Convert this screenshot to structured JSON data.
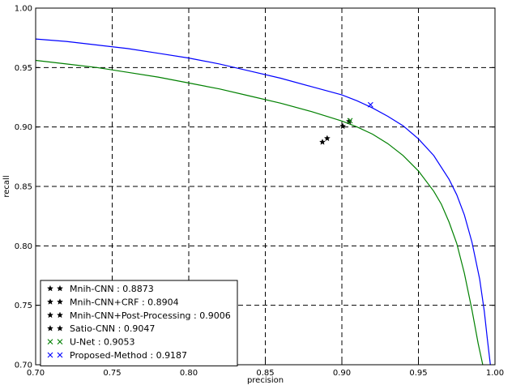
{
  "chart_data": {
    "type": "line",
    "title": "",
    "xlabel": "precision",
    "ylabel": "recall",
    "xlim": [
      0.7,
      1.0
    ],
    "ylim": [
      0.7,
      1.0
    ],
    "xticks": [
      "0.70",
      "0.75",
      "0.80",
      "0.85",
      "0.90",
      "0.95",
      "1.00"
    ],
    "yticks": [
      "0.70",
      "0.75",
      "0.80",
      "0.85",
      "0.90",
      "0.95",
      "1.00"
    ],
    "grid": true,
    "legend_position": "lower-left",
    "series": [
      {
        "name": "Proposed-Method : 0.9187",
        "color": "#0000ff",
        "kind": "line",
        "x": [
          0.7,
          0.72,
          0.74,
          0.76,
          0.78,
          0.8,
          0.82,
          0.84,
          0.86,
          0.88,
          0.9,
          0.91,
          0.92,
          0.93,
          0.94,
          0.95,
          0.96,
          0.97,
          0.975,
          0.98,
          0.985,
          0.99,
          0.993,
          0.995,
          0.997
        ],
        "y": [
          0.974,
          0.972,
          0.969,
          0.966,
          0.962,
          0.958,
          0.953,
          0.947,
          0.941,
          0.934,
          0.927,
          0.922,
          0.916,
          0.909,
          0.901,
          0.89,
          0.876,
          0.856,
          0.843,
          0.826,
          0.803,
          0.772,
          0.745,
          0.722,
          0.7
        ]
      },
      {
        "name": "U-Net : 0.9053",
        "color": "#008000",
        "kind": "line",
        "x": [
          0.7,
          0.72,
          0.74,
          0.76,
          0.78,
          0.8,
          0.82,
          0.84,
          0.86,
          0.88,
          0.9,
          0.91,
          0.92,
          0.93,
          0.94,
          0.95,
          0.96,
          0.965,
          0.97,
          0.975,
          0.98,
          0.985,
          0.989,
          0.992
        ],
        "y": [
          0.956,
          0.953,
          0.95,
          0.946,
          0.942,
          0.937,
          0.932,
          0.926,
          0.92,
          0.913,
          0.905,
          0.9,
          0.894,
          0.886,
          0.876,
          0.863,
          0.846,
          0.835,
          0.82,
          0.802,
          0.777,
          0.746,
          0.718,
          0.7
        ]
      }
    ],
    "points": [
      {
        "name": "Mnih-CNN : 0.8873",
        "color": "#000000",
        "marker": "star",
        "x": 0.8873,
        "y": 0.8873
      },
      {
        "name": "Mnih-CNN+CRF : 0.8904",
        "color": "#000000",
        "marker": "star",
        "x": 0.8904,
        "y": 0.8904
      },
      {
        "name": "Mnih-CNN+Post-Processing : 0.9006",
        "color": "#000000",
        "marker": "star",
        "x": 0.9006,
        "y": 0.9006
      },
      {
        "name": "Satio-CNN : 0.9047",
        "color": "#000000",
        "marker": "star",
        "x": 0.9047,
        "y": 0.9047
      },
      {
        "name": "U-Net : 0.9053",
        "color": "#008000",
        "marker": "x",
        "x": 0.9053,
        "y": 0.9053
      },
      {
        "name": "Proposed-Method : 0.9187",
        "color": "#0000ff",
        "marker": "x",
        "x": 0.9187,
        "y": 0.9187
      }
    ],
    "legend": [
      {
        "label": "Mnih-CNN : 0.8873",
        "marker": "star",
        "color": "#000000"
      },
      {
        "label": "Mnih-CNN+CRF : 0.8904",
        "marker": "star",
        "color": "#000000"
      },
      {
        "label": "Mnih-CNN+Post-Processing : 0.9006",
        "marker": "star",
        "color": "#000000"
      },
      {
        "label": "Satio-CNN : 0.9047",
        "marker": "star",
        "color": "#000000"
      },
      {
        "label": "U-Net : 0.9053",
        "marker": "x",
        "color": "#008000"
      },
      {
        "label": "Proposed-Method : 0.9187",
        "marker": "x",
        "color": "#0000ff"
      }
    ]
  }
}
